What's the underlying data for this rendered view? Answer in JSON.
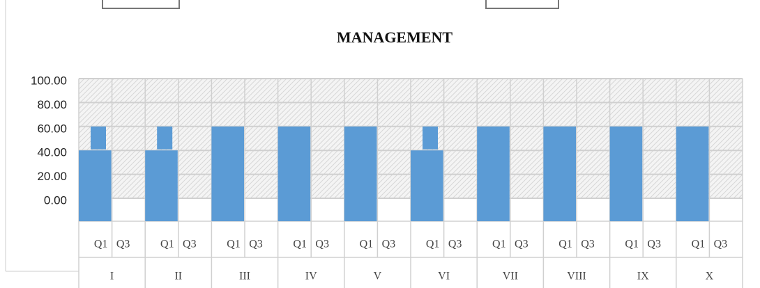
{
  "chart_data": {
    "type": "bar",
    "title": "MANAGEMENT",
    "groups": [
      "I",
      "II",
      "III",
      "IV",
      "V",
      "VI",
      "VII",
      "VIII",
      "IX",
      "X"
    ],
    "subcategories": [
      "Q1",
      "Q3"
    ],
    "series": [
      {
        "color": "#5b9bd5",
        "values": [
          40,
          40,
          60,
          60,
          60,
          40,
          60,
          60,
          60,
          60
        ]
      },
      {
        "color": "#5b9bd5",
        "values": [
          20,
          20,
          0,
          0,
          0,
          20,
          0,
          0,
          0,
          0
        ]
      }
    ],
    "ylim": [
      0,
      100
    ],
    "yticks": [
      {
        "value": 100,
        "label": "100.00"
      },
      {
        "value": 80,
        "label": "80.00"
      },
      {
        "value": 60,
        "label": "60.00"
      },
      {
        "value": 40,
        "label": "40.00"
      },
      {
        "value": 20,
        "label": "20.00"
      },
      {
        "value": 0,
        "label": "0.00"
      }
    ],
    "grid": true
  }
}
